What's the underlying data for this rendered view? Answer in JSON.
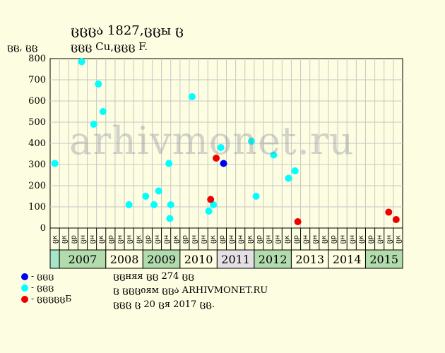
{
  "header": {
    "title": "ცცცა 1827,ცცы ც",
    "subtitle": "ცცც Cu,ცცც F."
  },
  "watermark": "arhivmonet.ru",
  "legend": [
    {
      "label": "- ცცც",
      "color": "#0000ee"
    },
    {
      "label": "- ცცც",
      "color": "#00ffff"
    },
    {
      "label": "- ცცცცცБ",
      "color": "#ee0000"
    }
  ],
  "notes": [
    "ცცняя ცც 274 ცც",
    "ც ცცციям ცცა ARHIVMONET.RU",
    "ცცც ც 20 ცя 2017 ცც."
  ],
  "colors": {
    "background": "#fdfde1",
    "plot_background": "#fdfde1",
    "grid": "#c8c8c8",
    "year_green": "#b2dcad",
    "year_light": "#fdfde1",
    "year_grey": "#e4e0e4",
    "first_cell": "#a8e4c8",
    "blue": "#0000ee",
    "cyan": "#00ffff",
    "red": "#ee0000"
  },
  "chart_data": {
    "type": "scatter",
    "title": "ცცცა 1827,ცცы ც",
    "subtitle": "ცცც Cu,ცცც F.",
    "ylabel": "ცც, ცც",
    "ylim": [
      0,
      800
    ],
    "yticks": [
      0,
      100,
      200,
      300,
      400,
      500,
      600,
      700,
      800
    ],
    "grid": true,
    "x_slot_count": 38,
    "x_slot_labels": [
      "ცк",
      "ცк",
      "ცр",
      "ცн",
      "ცн",
      "ცк",
      "ცр",
      "ცн",
      "ცн",
      "ცк",
      "ცр",
      "ცн",
      "ცн",
      "ცк",
      "ცр",
      "ცн",
      "ცн",
      "ცк",
      "ცр",
      "ცн",
      "ცн",
      "ცк",
      "ცр",
      "ცн",
      "ცн",
      "ცк",
      "ცр",
      "ცн",
      "ცн",
      "ცк",
      "ცр",
      "ცн",
      "ცн",
      "ცк",
      "ცр",
      "ცн",
      "ცн",
      "ცк"
    ],
    "years": [
      {
        "label": "",
        "slots": 1,
        "shade": "first"
      },
      {
        "label": "2007",
        "slots": 5,
        "shade": "green"
      },
      {
        "label": "2008",
        "slots": 4,
        "shade": "light"
      },
      {
        "label": "2009",
        "slots": 4,
        "shade": "green"
      },
      {
        "label": "2010",
        "slots": 4,
        "shade": "light"
      },
      {
        "label": "2011",
        "slots": 4,
        "shade": "grey"
      },
      {
        "label": "2012",
        "slots": 4,
        "shade": "green"
      },
      {
        "label": "2013",
        "slots": 4,
        "shade": "light"
      },
      {
        "label": "2014",
        "slots": 4,
        "shade": "light"
      },
      {
        "label": "2015",
        "slots": 4,
        "shade": "green"
      }
    ],
    "series": [
      {
        "color": "#00ffff",
        "points": [
          {
            "slot": 0.5,
            "y": 305
          },
          {
            "slot": 3.4,
            "y": 785
          },
          {
            "slot": 4.7,
            "y": 490
          },
          {
            "slot": 5.2,
            "y": 680
          },
          {
            "slot": 5.7,
            "y": 550
          },
          {
            "slot": 8.5,
            "y": 110
          },
          {
            "slot": 10.3,
            "y": 150
          },
          {
            "slot": 11.2,
            "y": 110
          },
          {
            "slot": 11.7,
            "y": 175
          },
          {
            "slot": 12.8,
            "y": 305
          },
          {
            "slot": 12.9,
            "y": 45
          },
          {
            "slot": 13.0,
            "y": 110
          },
          {
            "slot": 15.3,
            "y": 620
          },
          {
            "slot": 17.1,
            "y": 80
          },
          {
            "slot": 17.6,
            "y": 110
          },
          {
            "slot": 18.4,
            "y": 380
          },
          {
            "slot": 21.7,
            "y": 410
          },
          {
            "slot": 22.2,
            "y": 150
          },
          {
            "slot": 24.1,
            "y": 345
          },
          {
            "slot": 25.7,
            "y": 235
          },
          {
            "slot": 26.4,
            "y": 270
          }
        ]
      },
      {
        "color": "#0000ee",
        "points": [
          {
            "slot": 18.7,
            "y": 305
          }
        ]
      },
      {
        "color": "#ee0000",
        "points": [
          {
            "slot": 17.3,
            "y": 135
          },
          {
            "slot": 17.9,
            "y": 330
          },
          {
            "slot": 26.7,
            "y": 30
          },
          {
            "slot": 36.5,
            "y": 75
          },
          {
            "slot": 37.3,
            "y": 40
          }
        ]
      }
    ]
  }
}
